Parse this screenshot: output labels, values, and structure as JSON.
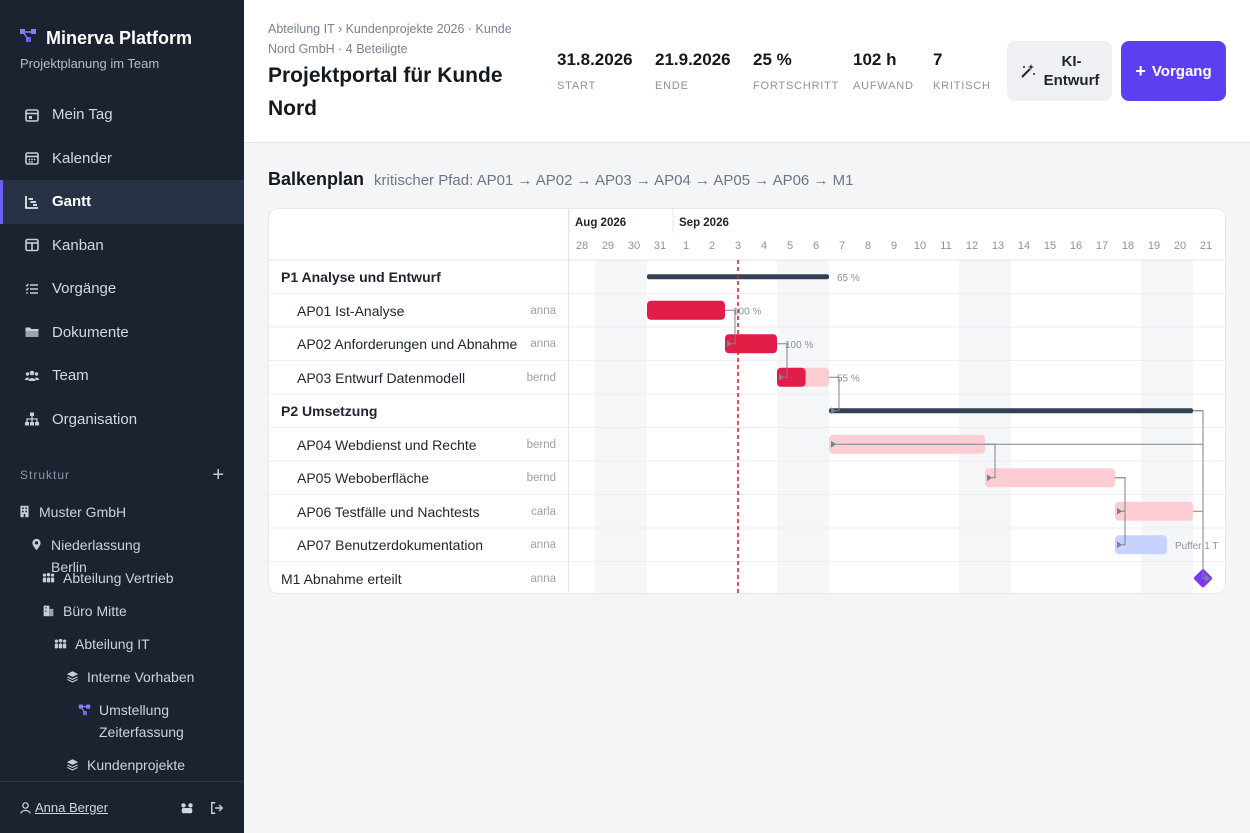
{
  "sidebar": {
    "brand": "Minerva Platform",
    "subtitle": "Projektplanung im Team",
    "nav": [
      {
        "label": "Mein Tag",
        "icon": "calendar-day-icon"
      },
      {
        "label": "Kalender",
        "icon": "calendar-icon"
      },
      {
        "label": "Gantt",
        "icon": "gantt-icon",
        "active": true
      },
      {
        "label": "Kanban",
        "icon": "kanban-icon"
      },
      {
        "label": "Vorgänge",
        "icon": "list-icon"
      },
      {
        "label": "Dokumente",
        "icon": "folder-icon"
      },
      {
        "label": "Team",
        "icon": "team-icon"
      },
      {
        "label": "Organisation",
        "icon": "org-icon"
      }
    ],
    "structure_label": "Struktur",
    "structure_add": "+",
    "tree": [
      {
        "label": "Muster GmbH",
        "icon": "building-icon",
        "level": 0
      },
      {
        "label": "Niederlassung Berlin",
        "icon": "location-pin-icon",
        "level": 1
      },
      {
        "label": "Abteilung Vertrieb",
        "icon": "people-group-icon",
        "level": 2
      },
      {
        "label": "Büro Mitte",
        "icon": "office-icon",
        "level": 2
      },
      {
        "label": "Abteilung IT",
        "icon": "people-group-icon",
        "level": 3
      },
      {
        "label": "Interne Vorhaben",
        "icon": "layers-icon",
        "level": 4
      },
      {
        "label": "Umstellung Zeiterfassung",
        "icon": "project-icon",
        "level": 5
      },
      {
        "label": "Kundenprojekte",
        "icon": "layers-icon",
        "level": 4
      }
    ],
    "user": "Anna Berger"
  },
  "header": {
    "breadcrumb": "Abteilung IT › Kundenprojekte 2026 · Kunde Nord GmbH · 4 Beteiligte",
    "title": "Projektportal für Kunde Nord",
    "kpis": [
      {
        "value": "31.8.2026",
        "label": "START"
      },
      {
        "value": "21.9.2026",
        "label": "ENDE"
      },
      {
        "value": "25 %",
        "label": "FORTSCHRITT"
      },
      {
        "value": "102 h",
        "label": "AUFWAND"
      },
      {
        "value": "7",
        "label": "KRITISCH"
      }
    ],
    "ai_button": "KI-Entwurf",
    "new_button": "Vorgang",
    "new_button_prefix": "+"
  },
  "gantt": {
    "title": "Balkenplan",
    "critical_path": "kritischer Pfad: AP01 → AP02 → AP03 → AP04 → AP05 → AP06 → M1",
    "months": [
      {
        "label": "Aug 2026",
        "start_index": 0
      },
      {
        "label": "Sep 2026",
        "start_index": 4
      }
    ],
    "days": [
      "28",
      "29",
      "30",
      "31",
      "1",
      "2",
      "3",
      "4",
      "5",
      "6",
      "7",
      "8",
      "9",
      "10",
      "11",
      "12",
      "13",
      "14",
      "15",
      "16",
      "17",
      "18",
      "19",
      "20",
      "21"
    ],
    "weekend_indices": [
      1,
      2,
      8,
      9,
      15,
      16,
      22,
      23
    ],
    "today_index": 6.5,
    "rows": [
      {
        "name": "P1 Analyse und Entwurf",
        "type": "group",
        "assignee": "",
        "start": 3,
        "end": 10,
        "progress_label": "65 %"
      },
      {
        "name": "AP01 Ist-Analyse",
        "type": "task",
        "assignee": "anna",
        "start": 3,
        "end": 6,
        "progress": 100,
        "progress_label": "100 %",
        "critical": true
      },
      {
        "name": "AP02 Anforderungen und Abnahme",
        "type": "task",
        "assignee": "anna",
        "start": 6,
        "end": 8,
        "progress": 100,
        "progress_label": "100 %",
        "critical": true
      },
      {
        "name": "AP03 Entwurf Datenmodell",
        "type": "task",
        "assignee": "bernd",
        "start": 8,
        "end": 10,
        "progress": 55,
        "progress_label": "55 %",
        "critical": true
      },
      {
        "name": "P2 Umsetzung",
        "type": "group",
        "assignee": "",
        "start": 10,
        "end": 24,
        "progress_label": ""
      },
      {
        "name": "AP04 Webdienst und Rechte",
        "type": "task",
        "assignee": "bernd",
        "start": 10,
        "end": 16,
        "progress": 0,
        "progress_label": "",
        "critical": true
      },
      {
        "name": "AP05 Weboberfläche",
        "type": "task",
        "assignee": "bernd",
        "start": 16,
        "end": 21,
        "progress": 0,
        "progress_label": "",
        "critical": true
      },
      {
        "name": "AP06 Testfälle und Nachtests",
        "type": "task",
        "assignee": "carla",
        "start": 21,
        "end": 24,
        "progress": 0,
        "progress_label": "",
        "critical": true
      },
      {
        "name": "AP07 Benutzerdokumentation",
        "type": "task",
        "assignee": "anna",
        "start": 21,
        "end": 23,
        "progress": 0,
        "progress_label": "Puffer 1 T",
        "critical": false
      },
      {
        "name": "M1 Abnahme erteilt",
        "type": "milestone",
        "assignee": "anna",
        "start": 24.5,
        "end": 24.5,
        "progress_label": ""
      }
    ],
    "colors": {
      "critical": "#e11d48",
      "critical_light": "#fecdd3",
      "normal_light": "#c7d2fe",
      "group_bar": "#334155",
      "milestone": "#7c3aed",
      "today": "#dc2626"
    }
  }
}
